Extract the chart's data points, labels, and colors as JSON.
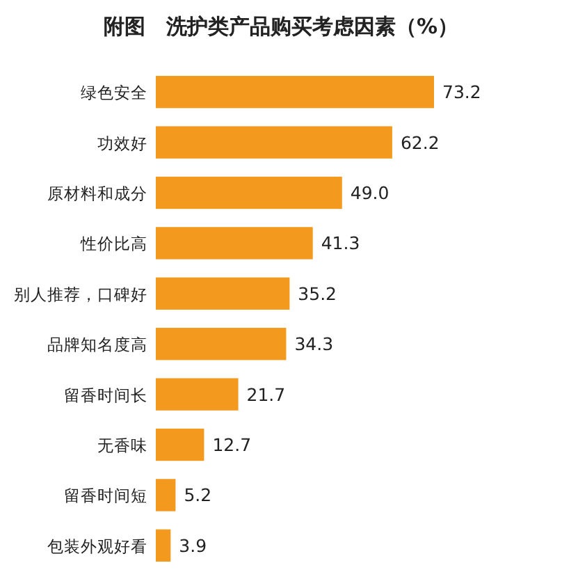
{
  "chart_data": {
    "type": "bar",
    "orientation": "horizontal",
    "title": "附图　洗护类产品购买考虑因素（%）",
    "categories": [
      "绿色安全",
      "功效好",
      "原材料和成分",
      "性价比高",
      "别人推荐，口碑好",
      "品牌知名度高",
      "留香时间长",
      "无香味",
      "留香时间短",
      "包装外观好看"
    ],
    "values": [
      73.2,
      62.2,
      49.0,
      41.3,
      35.2,
      34.3,
      21.7,
      12.7,
      5.2,
      3.9
    ],
    "value_labels": [
      "73.2",
      "62.2",
      "49.0",
      "41.3",
      "35.2",
      "34.3",
      "21.7",
      "12.7",
      "5.2",
      "3.9"
    ],
    "color": "#f39a1e"
  }
}
